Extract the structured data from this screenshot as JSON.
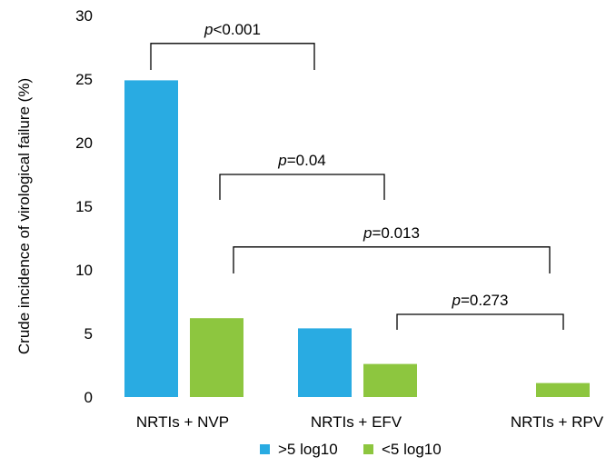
{
  "chart_data": {
    "type": "bar",
    "title": "",
    "xlabel": "",
    "ylabel": "Crude incidence of virological failure (%)",
    "ylim": [
      0,
      30
    ],
    "yticks": [
      "0",
      "5",
      "10",
      "15",
      "20",
      "25",
      "30"
    ],
    "categories": [
      "NRTIs + NVP",
      "NRTIs + EFV",
      "NRTIs + RPV"
    ],
    "series": [
      {
        "name": ">5 log10",
        "color": "#29abe2",
        "values": [
          24.9,
          5.4,
          0
        ]
      },
      {
        "name": "<5 log10",
        "color": "#8dc63f",
        "values": [
          6.2,
          2.6,
          1.1
        ]
      }
    ],
    "legend_position": "bottom",
    "grid": false,
    "annotations": [
      {
        "prefix": "p",
        "text": "<0.001",
        "from": {
          "category": 0,
          "series": 0
        },
        "to": {
          "category": 1,
          "series": 0
        },
        "level": 27.8
      },
      {
        "prefix": "p",
        "text": "=0.04",
        "from": {
          "category": 0,
          "series": 1
        },
        "to": {
          "category": 1,
          "series": 1
        },
        "level": 17.5
      },
      {
        "prefix": "p",
        "text": "=0.013",
        "from": {
          "category": 0,
          "series": 1
        },
        "to": {
          "category": 2,
          "series": 1
        },
        "level": 11.8
      },
      {
        "prefix": "p",
        "text": "=0.273",
        "from": {
          "category": 1,
          "series": 1
        },
        "to": {
          "category": 2,
          "series": 1
        },
        "level": 6.5
      }
    ]
  }
}
